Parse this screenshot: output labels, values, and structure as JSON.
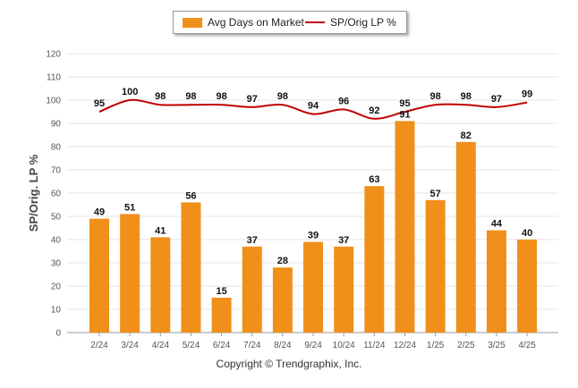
{
  "chart_data": {
    "type": "bar",
    "categories": [
      "2/24",
      "3/24",
      "4/24",
      "5/24",
      "6/24",
      "7/24",
      "8/24",
      "9/24",
      "10/24",
      "11/24",
      "12/24",
      "1/25",
      "2/25",
      "3/25",
      "4/25"
    ],
    "series": [
      {
        "name": "Avg Days on Market",
        "type": "bar",
        "color": "#F0901A",
        "values": [
          49,
          51,
          41,
          56,
          15,
          37,
          28,
          39,
          37,
          63,
          91,
          57,
          82,
          44,
          40
        ]
      },
      {
        "name": "SP/Orig LP %",
        "type": "line",
        "color": "#C00000",
        "values": [
          95,
          100,
          98,
          98,
          98,
          97,
          98,
          94,
          96,
          92,
          95,
          98,
          98,
          97,
          99
        ]
      }
    ],
    "ylabel": "SP/Orig. LP %",
    "ylim": [
      0,
      120
    ],
    "yticks": [
      0,
      10,
      20,
      30,
      40,
      50,
      60,
      70,
      80,
      90,
      100,
      110,
      120
    ],
    "grid": true,
    "legend": "top-center"
  },
  "footer": {
    "copyright": "Copyright © Trendgraphix, Inc."
  }
}
